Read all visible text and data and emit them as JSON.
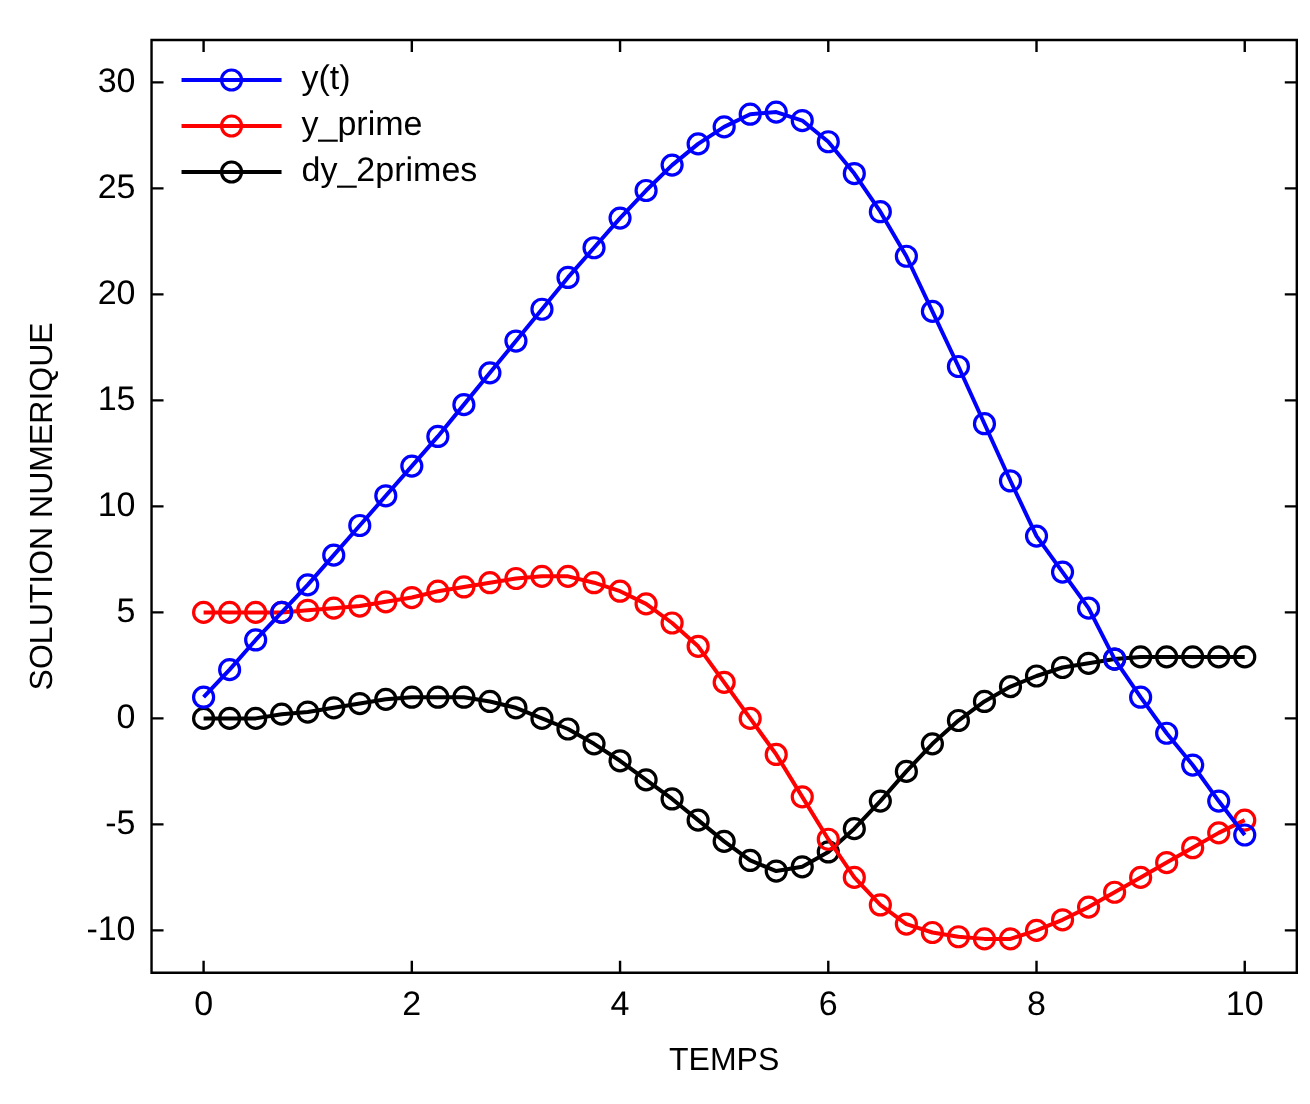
{
  "chart_data": {
    "type": "line",
    "xlabel": "TEMPS",
    "ylabel": "SOLUTION NUMERIQUE",
    "x": [
      0,
      0.25,
      0.5,
      0.75,
      1,
      1.25,
      1.5,
      1.75,
      2,
      2.25,
      2.5,
      2.75,
      3,
      3.25,
      3.5,
      3.75,
      4,
      4.25,
      4.5,
      4.75,
      5,
      5.25,
      5.5,
      5.75,
      6,
      6.25,
      6.5,
      6.75,
      7,
      7.25,
      7.5,
      7.75,
      8,
      8.25,
      8.5,
      8.75,
      9,
      9.25,
      9.5,
      9.75,
      10
    ],
    "series": [
      {
        "name": "y(t)",
        "color": "#0000ff",
        "values": [
          1.0,
          2.3,
          3.7,
          5.0,
          6.3,
          7.7,
          9.1,
          10.5,
          11.9,
          13.3,
          14.8,
          16.3,
          17.8,
          19.3,
          20.8,
          22.2,
          23.6,
          24.9,
          26.1,
          27.1,
          27.9,
          28.5,
          28.6,
          28.2,
          27.2,
          25.7,
          23.9,
          21.8,
          19.2,
          16.6,
          13.9,
          11.2,
          8.6,
          6.9,
          5.2,
          2.8,
          1.0,
          -0.7,
          -2.2,
          -3.9,
          -5.5
        ]
      },
      {
        "name": "y_prime",
        "color": "#ff0000",
        "values": [
          5.0,
          5.0,
          5.0,
          5.0,
          5.1,
          5.2,
          5.3,
          5.5,
          5.7,
          6.0,
          6.2,
          6.4,
          6.6,
          6.7,
          6.7,
          6.4,
          6.0,
          5.4,
          4.5,
          3.4,
          1.7,
          0.0,
          -1.7,
          -3.7,
          -5.7,
          -7.5,
          -8.8,
          -9.7,
          -10.1,
          -10.3,
          -10.4,
          -10.4,
          -10.0,
          -9.5,
          -8.9,
          -8.2,
          -7.5,
          -6.8,
          -6.1,
          -5.4,
          -4.8
        ]
      },
      {
        "name": "dy_2primes",
        "color": "#000000",
        "values": [
          0,
          0,
          0,
          0.2,
          0.3,
          0.5,
          0.7,
          0.9,
          1.0,
          1.0,
          1.0,
          0.8,
          0.5,
          0,
          -0.5,
          -1.2,
          -2.0,
          -2.9,
          -3.8,
          -4.8,
          -5.8,
          -6.7,
          -7.2,
          -7.0,
          -6.3,
          -5.2,
          -3.9,
          -2.5,
          -1.2,
          -0.1,
          0.8,
          1.5,
          2.0,
          2.4,
          2.6,
          2.8,
          2.9,
          2.9,
          2.9,
          2.9,
          2.9
        ]
      }
    ],
    "xlim": [
      -0.5,
      10.5
    ],
    "xticks": [
      0,
      2,
      4,
      6,
      8,
      10
    ],
    "ylim": [
      -12,
      32
    ],
    "yticks": [
      -10,
      -5,
      0,
      5,
      10,
      15,
      20,
      25,
      30
    ],
    "grid": false,
    "legend": "top left",
    "marker": "circle",
    "line_style": "solid"
  }
}
